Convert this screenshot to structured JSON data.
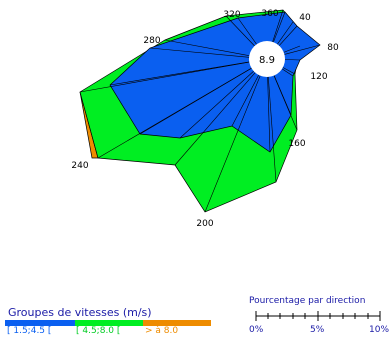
{
  "chart_data": {
    "type": "wind-rose",
    "center_value": "8.9",
    "direction_labels": [
      "40",
      "80",
      "120",
      "160",
      "200",
      "240",
      "280",
      "320",
      "360"
    ],
    "speed_groups_title": "Groupes de vitesses (m/s)",
    "speed_groups": [
      {
        "label": "[ 1.5;4.5 [",
        "color": "#0a5ff0"
      },
      {
        "label": "[ 4.5;8.0 [",
        "color": "#00ee22"
      },
      {
        "label": "> à 8.0",
        "color": "#ee8c00"
      }
    ],
    "scale_title": "Pourcentage par direction",
    "scale_ticks": [
      "0%",
      "5%",
      "10%"
    ]
  }
}
